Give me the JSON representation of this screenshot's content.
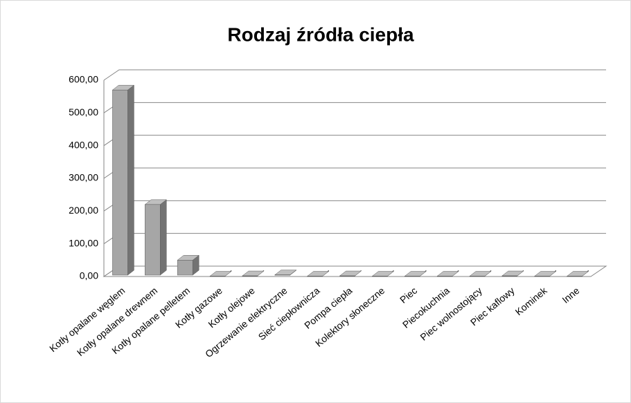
{
  "chart_data": {
    "type": "bar3d",
    "title": "Rodzaj źródła ciepła",
    "categories": [
      "Kotły opalane węglem",
      "Kotły opalane drewnem",
      "Kotły opalane pelletem",
      "Kotły gazowe",
      "Kotły olejowe",
      "Ogrzewanie elektryczne",
      "Sieć ciepłownicza",
      "Pompa ciepła",
      "Kolektory słoneczne",
      "Piec",
      "Piecokuchnia",
      "Piec wolnostojący",
      "Piec kaflowy",
      "Kominek",
      "Inne"
    ],
    "values": [
      570,
      220,
      50,
      1,
      2,
      5,
      1,
      2,
      1,
      1,
      1,
      1,
      2,
      1,
      1
    ],
    "color": "#a6a6a6",
    "ylim": [
      0,
      600
    ],
    "yticks": [
      {
        "value": 0,
        "label": "0,00"
      },
      {
        "value": 100,
        "label": "100,00"
      },
      {
        "value": 200,
        "label": "200,00"
      },
      {
        "value": 300,
        "label": "300,00"
      },
      {
        "value": 400,
        "label": "400,00"
      },
      {
        "value": 500,
        "label": "500,00"
      },
      {
        "value": 600,
        "label": "600,00"
      }
    ],
    "grid": true
  }
}
